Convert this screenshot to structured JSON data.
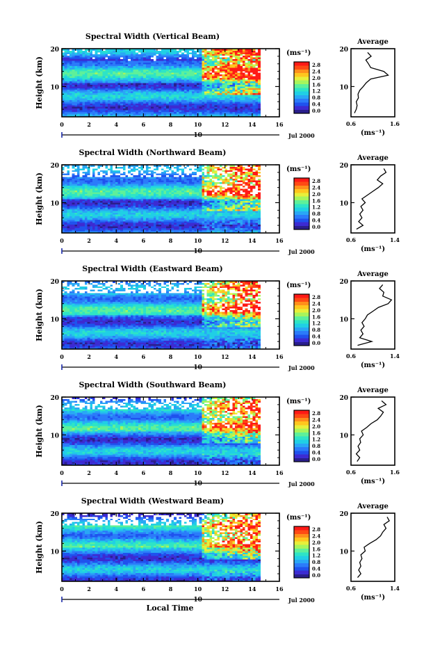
{
  "chart_data": {
    "type": "heatmap",
    "x_ticks": [
      0,
      2,
      4,
      6,
      8,
      10,
      12,
      14,
      16
    ],
    "y_ticks": [
      10,
      20
    ],
    "xlim": [
      0,
      16
    ],
    "ylim": [
      2,
      20
    ],
    "data_extent_hours": [
      0,
      14.6
    ],
    "date_label": "10",
    "date_suffix": "Jul 2000",
    "xlabel": "Local Time",
    "ylabel": "Height (km)",
    "colorbar": {
      "unit": "(ms⁻¹)",
      "ticks": [
        "2.8",
        "2.4",
        "2.0",
        "1.6",
        "1.2",
        "0.8",
        "0.4",
        "0.0"
      ],
      "colors": [
        "#2a1e8c",
        "#3c2bd2",
        "#1f52ee",
        "#2b7bfa",
        "#29a7f5",
        "#20cfe5",
        "#2ee4c6",
        "#5ef09a",
        "#a7f55c",
        "#e8ef3a",
        "#ffc61e",
        "#ff8f1b",
        "#ff4a14",
        "#ff1a16"
      ]
    },
    "average_title": "Average",
    "average_xlabel": "(ms⁻¹)",
    "panels": [
      {
        "title": "Spectral Width (Vertical Beam)",
        "avg_xlim": [
          0.6,
          1.6
        ],
        "avg_xlim_labels": [
          "0.6",
          "1.6"
        ],
        "profile_height": [
          3,
          4,
          5,
          6,
          7,
          8,
          9,
          10,
          11,
          12,
          13,
          14,
          15,
          16,
          17,
          18,
          19
        ],
        "profile_value": [
          0.68,
          0.72,
          0.74,
          0.72,
          0.77,
          0.76,
          0.8,
          0.88,
          0.95,
          1.05,
          1.45,
          1.35,
          1.05,
          1.0,
          0.94,
          1.06,
          0.98
        ]
      },
      {
        "title": "Spectral Width (Northward Beam)",
        "avg_xlim": [
          0.6,
          1.4
        ],
        "avg_xlim_labels": [
          "0.6",
          "1.4"
        ],
        "profile_height": [
          3,
          4,
          5,
          6,
          7,
          8,
          9,
          10,
          11,
          12,
          13,
          14,
          15,
          16,
          17,
          18,
          19
        ],
        "profile_value": [
          0.7,
          0.82,
          0.74,
          0.8,
          0.76,
          0.82,
          0.78,
          0.86,
          0.8,
          0.9,
          1.0,
          1.1,
          1.18,
          1.08,
          1.14,
          1.24,
          1.2
        ]
      },
      {
        "title": "Spectral Width (Eastward Beam)",
        "avg_xlim": [
          0.6,
          1.4
        ],
        "avg_xlim_labels": [
          "0.6",
          "1.4"
        ],
        "profile_height": [
          3,
          4,
          5,
          6,
          7,
          8,
          9,
          10,
          11,
          12,
          13,
          14,
          15,
          16,
          17,
          18,
          19
        ],
        "profile_value": [
          0.72,
          0.98,
          0.76,
          0.82,
          0.78,
          0.84,
          0.8,
          0.86,
          0.9,
          1.0,
          1.1,
          1.28,
          1.34,
          1.18,
          1.2,
          1.12,
          1.18
        ]
      },
      {
        "title": "Spectral Width (Southward Beam)",
        "avg_xlim": [
          0.6,
          1.6
        ],
        "avg_xlim_labels": [
          "0.6",
          "1.6"
        ],
        "profile_height": [
          3,
          4,
          5,
          6,
          7,
          8,
          9,
          10,
          11,
          12,
          13,
          14,
          15,
          16,
          17,
          18,
          19
        ],
        "profile_value": [
          0.74,
          0.8,
          0.72,
          0.8,
          0.76,
          0.82,
          0.8,
          0.88,
          0.84,
          0.96,
          1.06,
          1.2,
          1.28,
          1.34,
          1.22,
          1.4,
          1.3
        ]
      },
      {
        "title": "Spectral Width (Westward Beam)",
        "avg_xlim": [
          0.6,
          1.4
        ],
        "avg_xlim_labels": [
          "0.6",
          "1.4"
        ],
        "profile_height": [
          3,
          4,
          5,
          6,
          7,
          8,
          9,
          10,
          11,
          12,
          13,
          14,
          15,
          16,
          17,
          18,
          19
        ],
        "profile_value": [
          0.72,
          0.78,
          0.74,
          0.78,
          0.76,
          0.8,
          0.78,
          0.86,
          0.84,
          0.94,
          1.06,
          1.14,
          1.18,
          1.24,
          1.2,
          1.3,
          1.26
        ]
      }
    ]
  }
}
